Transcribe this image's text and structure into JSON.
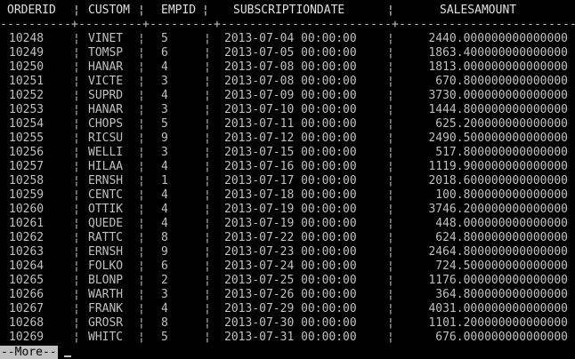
{
  "columns": [
    "ORDERID",
    "CUSTOM",
    "EMPID",
    "SUBSCRIPTIONDATE",
    "SALESAMOUNT"
  ],
  "rows": [
    [
      "10248",
      "VINET",
      "5",
      "2013-07-04 00:00:00",
      "2440.000000000000000"
    ],
    [
      "10249",
      "TOMSP",
      "6",
      "2013-07-05 00:00:00",
      "1863.400000000000000"
    ],
    [
      "10250",
      "HANAR",
      "4",
      "2013-07-08 00:00:00",
      "1813.000000000000000"
    ],
    [
      "10251",
      "VICTE",
      "3",
      "2013-07-08 00:00:00",
      "670.800000000000000"
    ],
    [
      "10252",
      "SUPRD",
      "4",
      "2013-07-09 00:00:00",
      "3730.000000000000000"
    ],
    [
      "10253",
      "HANAR",
      "3",
      "2013-07-10 00:00:00",
      "1444.800000000000000"
    ],
    [
      "10254",
      "CHOPS",
      "5",
      "2013-07-11 00:00:00",
      "625.200000000000000"
    ],
    [
      "10255",
      "RICSU",
      "9",
      "2013-07-12 00:00:00",
      "2490.500000000000000"
    ],
    [
      "10256",
      "WELLI",
      "3",
      "2013-07-15 00:00:00",
      "517.800000000000000"
    ],
    [
      "10257",
      "HILAA",
      "4",
      "2013-07-16 00:00:00",
      "1119.900000000000000"
    ],
    [
      "10258",
      "ERNSH",
      "1",
      "2013-07-17 00:00:00",
      "2018.600000000000000"
    ],
    [
      "10259",
      "CENTC",
      "4",
      "2013-07-18 00:00:00",
      "100.800000000000000"
    ],
    [
      "10260",
      "OTTIK",
      "4",
      "2013-07-19 00:00:00",
      "3746.200000000000000"
    ],
    [
      "10261",
      "QUEDE",
      "4",
      "2013-07-19 00:00:00",
      "448.000000000000000"
    ],
    [
      "10262",
      "RATTC",
      "8",
      "2013-07-22 00:00:00",
      "624.800000000000000"
    ],
    [
      "10263",
      "ERNSH",
      "9",
      "2013-07-23 00:00:00",
      "2464.800000000000000"
    ],
    [
      "10264",
      "FOLKO",
      "6",
      "2013-07-24 00:00:00",
      "724.500000000000000"
    ],
    [
      "10265",
      "BLONP",
      "2",
      "2013-07-25 00:00:00",
      "1176.000000000000000"
    ],
    [
      "10266",
      "WARTH",
      "3",
      "2013-07-26 00:00:00",
      "364.800000000000000"
    ],
    [
      "10267",
      "FRANK",
      "4",
      "2013-07-29 00:00:00",
      "4031.000000000000000"
    ],
    [
      "10268",
      "GROSR",
      "8",
      "2013-07-30 00:00:00",
      "1101.200000000000000"
    ],
    [
      "10269",
      "WHITC",
      "5",
      "2013-07-31 00:00:00",
      "676.000000000000000"
    ]
  ],
  "pager": {
    "prompt": "--More--"
  },
  "colors": {
    "background": "#000000",
    "text": "#c0c0c0",
    "pager_bg": "#c0c0c0"
  }
}
